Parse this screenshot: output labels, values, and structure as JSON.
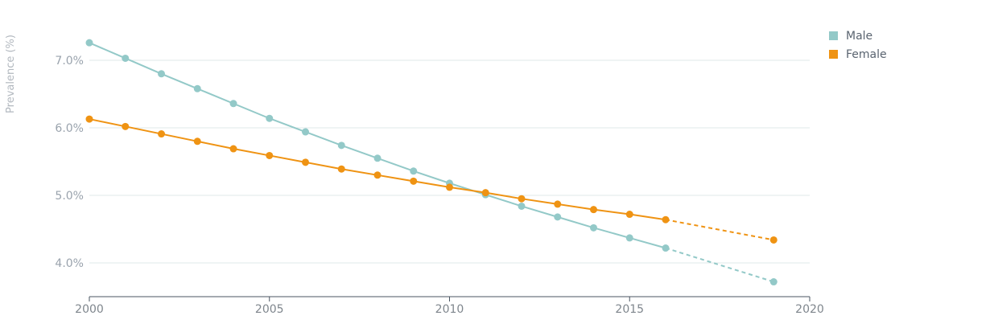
{
  "chart_data": {
    "type": "line",
    "xlabel": "",
    "ylabel": "Prevalence (%)",
    "xlim": [
      2000,
      2020
    ],
    "ylim": [
      3.5,
      7.8
    ],
    "x_ticks": [
      "2000",
      "2005",
      "2010",
      "2015",
      "2020"
    ],
    "y_ticks": [
      "4.0%",
      "5.0%",
      "6.0%",
      "7.0%"
    ],
    "grid": "horizontal",
    "legend_position": "top-right",
    "series": [
      {
        "name": "Male",
        "color": "#93c9c8",
        "x": [
          2000,
          2001,
          2002,
          2003,
          2004,
          2005,
          2006,
          2007,
          2008,
          2009,
          2010,
          2011,
          2012,
          2013,
          2014,
          2015,
          2016
        ],
        "y": [
          7.26,
          7.03,
          6.8,
          6.58,
          6.36,
          6.14,
          5.94,
          5.74,
          5.55,
          5.36,
          5.18,
          5.01,
          4.84,
          4.68,
          4.52,
          4.37,
          4.22
        ],
        "projection": {
          "x": [
            2016,
            2019
          ],
          "y": [
            4.22,
            3.72
          ]
        }
      },
      {
        "name": "Female",
        "color": "#ef9313",
        "x": [
          2000,
          2001,
          2002,
          2003,
          2004,
          2005,
          2006,
          2007,
          2008,
          2009,
          2010,
          2011,
          2012,
          2013,
          2014,
          2015,
          2016
        ],
        "y": [
          6.13,
          6.02,
          5.91,
          5.8,
          5.69,
          5.59,
          5.49,
          5.39,
          5.3,
          5.21,
          5.12,
          5.04,
          4.95,
          4.87,
          4.79,
          4.72,
          4.64
        ],
        "projection": {
          "x": [
            2016,
            2019
          ],
          "y": [
            4.64,
            4.34
          ]
        }
      }
    ]
  }
}
